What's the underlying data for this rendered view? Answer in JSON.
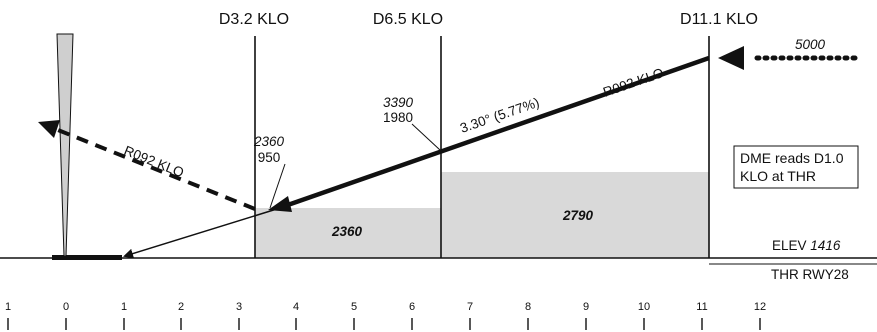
{
  "fixes": {
    "d32": "D3.2 KLO",
    "d65": "D6.5 KLO",
    "d111": "D11.1 KLO"
  },
  "entry_altitude": "5000",
  "radial_inbound": "R092 KLO",
  "radial_missed": "R092 KLO",
  "glidepath": "3.30° (5.77%)",
  "altitudes": {
    "d65_alt": "3390",
    "d65_height": "1980",
    "d32_alt": "2360",
    "d32_height": "950"
  },
  "minimum_altitudes": {
    "inner": "2360",
    "outer": "2790"
  },
  "dme_note": {
    "line1": "DME reads D1.0",
    "line2": "KLO at THR"
  },
  "elevation": {
    "label": "ELEV",
    "value": "1416"
  },
  "threshold_label": "THR RWY28",
  "distance_scale": [
    "1",
    "0",
    "1",
    "2",
    "3",
    "4",
    "5",
    "6",
    "7",
    "8",
    "9",
    "10",
    "11",
    "12"
  ],
  "colors": {
    "terrain_fill": "#d9d9d9",
    "ink": "#111111"
  }
}
